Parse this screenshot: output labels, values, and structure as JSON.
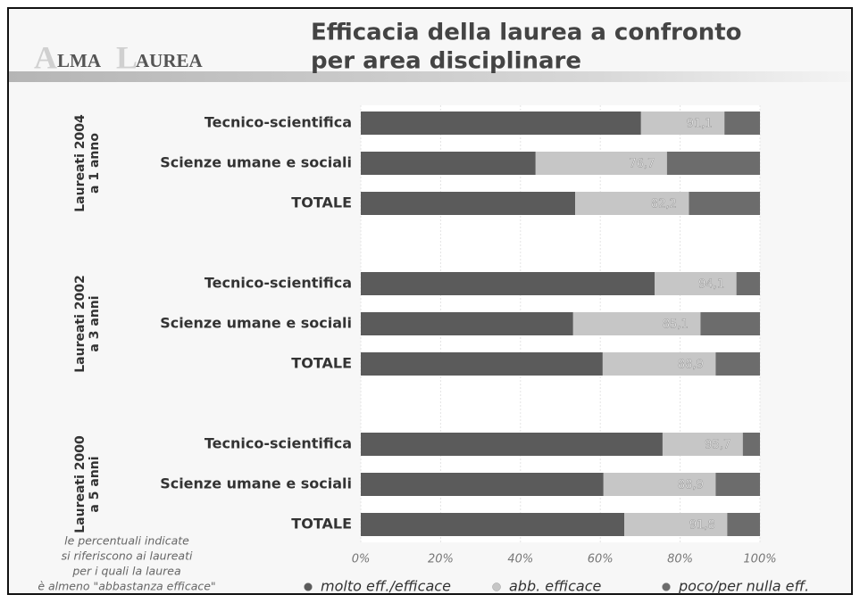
{
  "chart_data": {
    "type": "stacked_barh",
    "logo": [
      "A",
      "LMA",
      "L",
      "AUREA"
    ],
    "title": [
      "Efficacia della laurea a confronto",
      "per area disciplinare"
    ],
    "groups": [
      [
        "Laureati 2004",
        "a 1 anno"
      ],
      [
        "Laureati 2002",
        "a 3 anni"
      ],
      [
        "Laureati 2000",
        "a 5 anni"
      ]
    ],
    "categories": [
      "Tecnico-scientifica",
      "Scienze umane e sociali",
      "TOTALE",
      "Tecnico-scientifica",
      "Scienze umane e sociali",
      "TOTALE",
      "Tecnico-scientifica",
      "Scienze umane e sociali",
      "TOTALE"
    ],
    "series": [
      {
        "name": "molto eff./efficace",
        "color": "#5b5b5b",
        "values": [
          70.2,
          43.8,
          53.7,
          73.6,
          53.2,
          60.6,
          75.6,
          60.8,
          66.0
        ]
      },
      {
        "name": "abb. efficace",
        "color": "#c6c6c6",
        "values": [
          20.9,
          32.9,
          28.5,
          20.5,
          31.9,
          28.3,
          20.1,
          28.1,
          25.8
        ]
      },
      {
        "name": "poco/per nulla eff.",
        "color": "#6c6c6c",
        "values": [
          8.9,
          23.3,
          17.8,
          5.9,
          14.9,
          11.1,
          4.3,
          11.1,
          8.2
        ]
      }
    ],
    "effective_share": {
      "values": [
        91.1,
        76.7,
        82.2,
        94.1,
        85.1,
        88.9,
        95.7,
        88.9,
        91.8
      ],
      "value_labels": [
        "91,1",
        "76,7",
        "82,2",
        "94,1",
        "85,1",
        "88,9",
        "95,7",
        "88,9",
        "91,8"
      ]
    },
    "xlim": [
      0,
      100
    ],
    "xticks": [
      {
        "value": 0,
        "label": "0%"
      },
      {
        "value": 20,
        "label": "20%"
      },
      {
        "value": 40,
        "label": "40%"
      },
      {
        "value": 60,
        "label": "60%"
      },
      {
        "value": 80,
        "label": "80%"
      },
      {
        "value": 100,
        "label": "100%"
      }
    ],
    "grid": true,
    "legend": "bottom",
    "note": [
      "le percentuali indicate",
      "si riferiscono ai laureati",
      "per i quali la laurea",
      "è almeno \"abbastanza efficace\""
    ]
  }
}
